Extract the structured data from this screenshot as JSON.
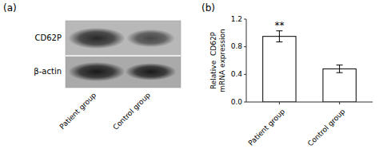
{
  "chart_data": [
    {
      "type": "blot",
      "title": "(a)",
      "rows": [
        "CD62P",
        "β-actin"
      ],
      "categories": [
        "Patient group",
        "Control group"
      ]
    },
    {
      "type": "bar",
      "title": "(b)",
      "categories": [
        "Patient group",
        "Control group"
      ],
      "values": [
        0.95,
        0.48
      ],
      "errors": [
        0.08,
        0.055
      ],
      "color": "#ffffff",
      "edge_color": "#000000",
      "ylabel": "Relative  CD62P\nmRNA expression",
      "ylim": [
        0.0,
        1.2
      ],
      "yticks": [
        {
          "value": 0.0,
          "label": "0.0"
        },
        0.4,
        0.8,
        1.2
      ],
      "annotations": [
        {
          "text": "**",
          "category": "Patient group"
        }
      ],
      "grid": false
    }
  ]
}
